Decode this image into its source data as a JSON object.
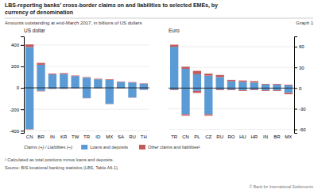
{
  "title": [
    "LBS-reporting banks’ cross-border claims on and liabilities to selected EMEs, by",
    "currency of denomination"
  ],
  "subtitle": "Amounts outstanding at end-March 2017, in billions of US dollars",
  "annotations": [
    "Graph 1",
    "Claims (+) / Liabilities (–):",
    "¹ Calculated as total positions minus loans and deposits.",
    "Source: BIS locational banking statistics (LBS, Table A6.1).",
    "© Bank for International Settlements"
  ],
  "chart_data": [
    {
      "type": "bar",
      "title": "US dollar",
      "stacked": true,
      "grid": true,
      "legend": "bottom",
      "categories": [
        "CN",
        "BR",
        "IN",
        "KR",
        "TW",
        "TR",
        "ID",
        "MX",
        "SA",
        "RU",
        "TH"
      ],
      "series": [
        {
          "name": "Loans and deposits",
          "color": "#5b9bd5",
          "values": [
            380,
            215,
            125,
            130,
            110,
            95,
            80,
            75,
            55,
            50,
            38
          ]
        },
        {
          "name": "Other claims and liabilities¹",
          "color": "#c55a5a",
          "values": [
            25,
            18,
            8,
            8,
            5,
            5,
            5,
            5,
            4,
            4,
            4
          ]
        },
        {
          "color": "#5b9bd5",
          "values": [
            -385,
            -28,
            -8,
            -8,
            -4,
            -95,
            -4,
            -150,
            -4,
            -90,
            -18
          ]
        },
        {
          "color": "#c55a5a",
          "values": [
            -4,
            -4,
            -2,
            -2,
            -2,
            -2,
            -2,
            -2,
            -2,
            -2,
            -2
          ]
        }
      ],
      "ylim": [
        -420,
        480
      ],
      "yticks": [
        -400,
        -200,
        0,
        200,
        400
      ]
    },
    {
      "type": "bar",
      "title": "Euro",
      "stacked": true,
      "grid": true,
      "categories": [
        "TR",
        "CN",
        "PL",
        "CZ",
        "RU",
        "RO",
        "HU",
        "HR",
        "IN",
        "BR",
        "MX"
      ],
      "series": [
        {
          "color": "#5b9bd5",
          "values": [
            60,
            28,
            20,
            18,
            16,
            10,
            9,
            8,
            5,
            5,
            4
          ]
        },
        {
          "color": "#c55a5a",
          "values": [
            3,
            3,
            5,
            3,
            3,
            2,
            2,
            2,
            1,
            1,
            1
          ]
        },
        {
          "color": "#5b9bd5",
          "values": [
            -2,
            -38,
            -4,
            -38,
            -2,
            -2,
            -3,
            -2,
            -3,
            -3,
            -7
          ]
        },
        {
          "color": "#c55a5a",
          "values": [
            -1,
            -2,
            -3,
            -2,
            -1,
            -1,
            -1,
            -1,
            -1,
            -1,
            -2
          ]
        }
      ],
      "ylim": [
        -65,
        75
      ],
      "yticks": [
        -60,
        -30,
        0,
        30,
        60
      ]
    }
  ]
}
